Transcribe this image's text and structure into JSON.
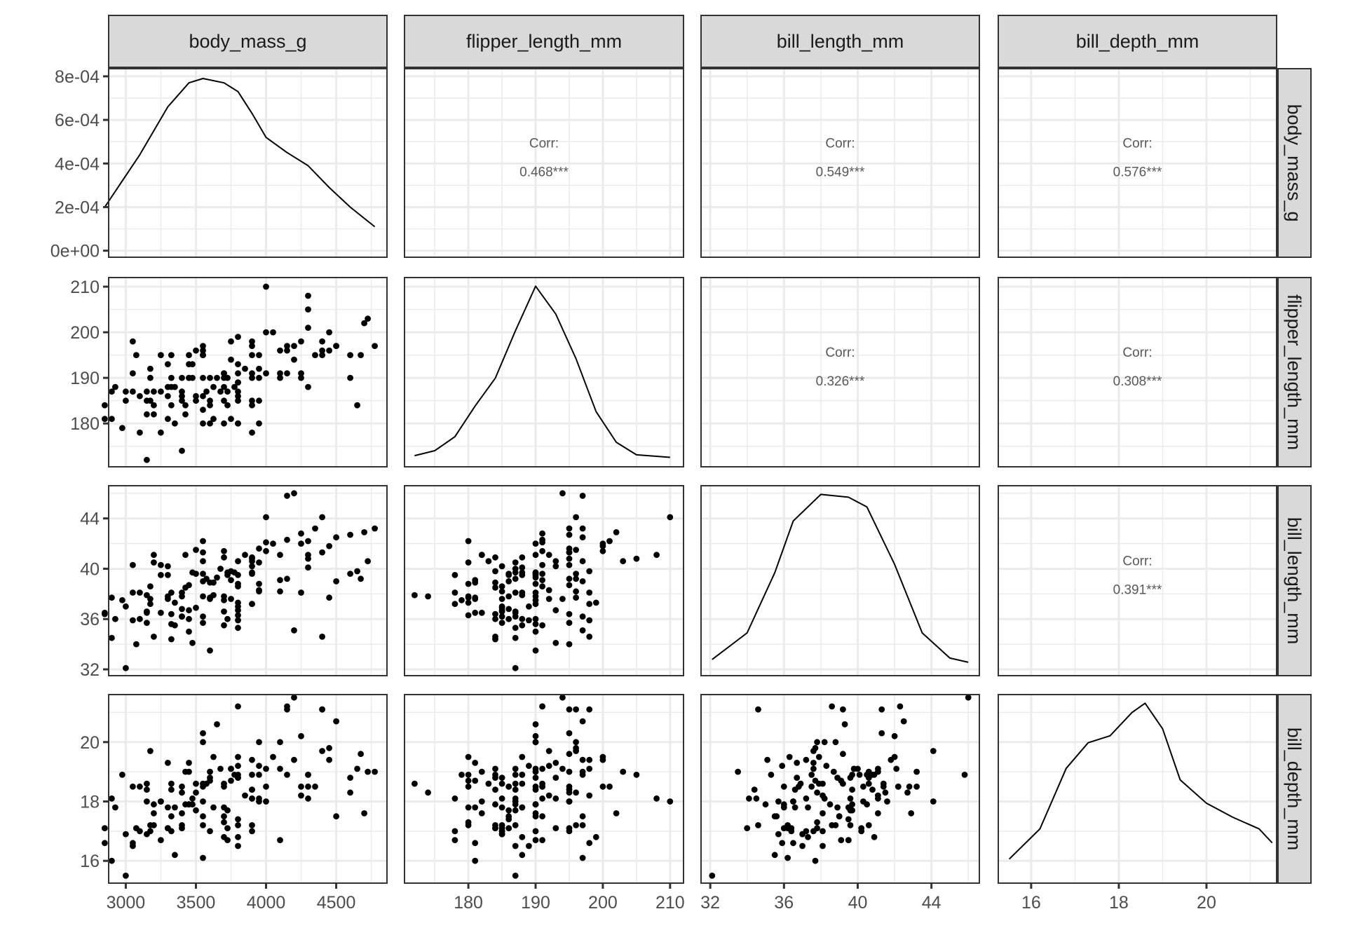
{
  "chart_data": {
    "type": "scatter-matrix",
    "variables": [
      "body_mass_g",
      "flipper_length_mm",
      "bill_length_mm",
      "bill_depth_mm"
    ],
    "ranges": {
      "body_mass_g": [
        2878,
        4862
      ],
      "flipper_length_mm": [
        170.5,
        212
      ],
      "bill_length_mm": [
        31.5,
        46.6
      ],
      "bill_depth_mm": [
        15.25,
        21.6
      ]
    },
    "ticks": {
      "body_mass_g": [
        3000,
        3500,
        4000,
        4500
      ],
      "flipper_length_mm": [
        180,
        190,
        200,
        210
      ],
      "bill_length_mm": [
        32,
        36,
        40,
        44
      ],
      "bill_depth_mm": [
        16,
        18,
        20
      ]
    },
    "density_axis": {
      "range": [
        -3e-05,
        0.000835
      ],
      "ticks": [
        0,
        0.0002,
        0.0004,
        0.0006,
        0.0008
      ],
      "tick_labels": [
        "0e+00",
        "2e-04",
        "4e-04",
        "6e-04",
        "8e-04"
      ]
    },
    "correlations": [
      {
        "row": 0,
        "col": 1,
        "label": "Corr:",
        "value": "0.468***"
      },
      {
        "row": 0,
        "col": 2,
        "label": "Corr:",
        "value": "0.549***"
      },
      {
        "row": 0,
        "col": 3,
        "label": "Corr:",
        "value": "0.576***"
      },
      {
        "row": 1,
        "col": 2,
        "label": "Corr:",
        "value": "0.326***"
      },
      {
        "row": 1,
        "col": 3,
        "label": "Corr:",
        "value": "0.308***"
      },
      {
        "row": 2,
        "col": 3,
        "label": "Corr:",
        "value": "0.391***"
      }
    ],
    "densities": {
      "body_mass_g": [
        [
          2850,
          0.0002
        ],
        [
          3100,
          0.00044
        ],
        [
          3300,
          0.00066
        ],
        [
          3450,
          0.00077
        ],
        [
          3550,
          0.00079
        ],
        [
          3700,
          0.00077
        ],
        [
          3800,
          0.00073
        ],
        [
          3900,
          0.00063
        ],
        [
          4000,
          0.00052
        ],
        [
          4150,
          0.00045
        ],
        [
          4300,
          0.00039
        ],
        [
          4450,
          0.00029
        ],
        [
          4600,
          0.0002
        ],
        [
          4775,
          0.00011
        ]
      ],
      "flipper_length_mm": [
        [
          172,
          0.0012
        ],
        [
          175,
          0.003
        ],
        [
          178,
          0.008
        ],
        [
          181,
          0.019
        ],
        [
          184,
          0.029
        ],
        [
          187,
          0.046
        ],
        [
          190,
          0.062
        ],
        [
          193,
          0.052
        ],
        [
          196,
          0.036
        ],
        [
          199,
          0.017
        ],
        [
          202,
          0.006
        ],
        [
          205,
          0.0015
        ],
        [
          210,
          0.0006
        ]
      ],
      "bill_length_mm": [
        [
          32.1,
          0.006
        ],
        [
          34,
          0.025
        ],
        [
          35.5,
          0.068
        ],
        [
          36.5,
          0.105
        ],
        [
          38,
          0.124
        ],
        [
          39.5,
          0.122
        ],
        [
          40.5,
          0.115
        ],
        [
          42,
          0.074
        ],
        [
          43.5,
          0.025
        ],
        [
          45,
          0.007
        ],
        [
          46,
          0.004
        ]
      ],
      "bill_depth_mm": [
        [
          15.5,
          0.035
        ],
        [
          16.2,
          0.1
        ],
        [
          16.8,
          0.23
        ],
        [
          17.3,
          0.285
        ],
        [
          17.8,
          0.3
        ],
        [
          18.3,
          0.35
        ],
        [
          18.6,
          0.37
        ],
        [
          19.0,
          0.315
        ],
        [
          19.4,
          0.205
        ],
        [
          20.0,
          0.155
        ],
        [
          20.6,
          0.125
        ],
        [
          21.2,
          0.1
        ],
        [
          21.5,
          0.07
        ]
      ]
    },
    "observations": [
      [
        3750,
        181,
        39.1,
        18.7
      ],
      [
        3800,
        186,
        39.5,
        17.4
      ],
      [
        3250,
        195,
        40.3,
        18.0
      ],
      [
        3450,
        193,
        36.7,
        19.3
      ],
      [
        3650,
        190,
        39.3,
        20.6
      ],
      [
        3625,
        181,
        38.9,
        17.8
      ],
      [
        4675,
        195,
        39.2,
        19.6
      ],
      [
        3475,
        193,
        34.1,
        18.1
      ],
      [
        4250,
        190,
        42.0,
        20.2
      ],
      [
        3300,
        186,
        37.8,
        17.1
      ],
      [
        3700,
        180,
        37.8,
        17.3
      ],
      [
        3200,
        182,
        41.1,
        17.6
      ],
      [
        3800,
        191,
        38.6,
        21.2
      ],
      [
        4400,
        198,
        34.6,
        21.1
      ],
      [
        3700,
        185,
        36.6,
        17.8
      ],
      [
        3450,
        195,
        38.7,
        19.0
      ],
      [
        4500,
        197,
        42.5,
        20.7
      ],
      [
        3325,
        184,
        34.4,
        18.4
      ],
      [
        4200,
        194,
        46.0,
        21.5
      ],
      [
        3400,
        174,
        37.8,
        18.3
      ],
      [
        3600,
        180,
        37.7,
        18.7
      ],
      [
        3800,
        189,
        35.9,
        19.2
      ],
      [
        3950,
        185,
        38.2,
        18.1
      ],
      [
        3800,
        180,
        38.8,
        17.2
      ],
      [
        3800,
        187,
        35.3,
        18.9
      ],
      [
        3550,
        183,
        40.6,
        18.6
      ],
      [
        3200,
        187,
        40.5,
        17.9
      ],
      [
        3150,
        172,
        37.9,
        18.6
      ],
      [
        3950,
        180,
        40.5,
        18.9
      ],
      [
        3250,
        178,
        39.5,
        16.7
      ],
      [
        3900,
        178,
        37.2,
        18.1
      ],
      [
        3300,
        188,
        39.5,
        17.8
      ],
      [
        3900,
        184,
        40.9,
        18.9
      ],
      [
        3325,
        195,
        36.4,
        17.0
      ],
      [
        4150,
        196,
        39.2,
        21.1
      ],
      [
        3950,
        190,
        38.8,
        20.0
      ],
      [
        3550,
        180,
        42.2,
        18.5
      ],
      [
        3300,
        181,
        37.6,
        19.3
      ],
      [
        4650,
        184,
        39.8,
        19.1
      ],
      [
        3150,
        182,
        36.5,
        18.0
      ],
      [
        3900,
        195,
        40.8,
        18.4
      ],
      [
        3100,
        186,
        36.0,
        18.5
      ],
      [
        4400,
        196,
        44.1,
        19.7
      ],
      [
        3000,
        185,
        37.0,
        16.9
      ],
      [
        4600,
        190,
        39.6,
        18.8
      ],
      [
        3425,
        182,
        41.1,
        19.0
      ],
      [
        2975,
        179,
        37.5,
        18.9
      ],
      [
        3450,
        190,
        36.0,
        17.9
      ],
      [
        4150,
        191,
        42.3,
        21.2
      ],
      [
        3500,
        186,
        39.6,
        17.7
      ],
      [
        4300,
        188,
        40.1,
        18.9
      ],
      [
        3450,
        190,
        35.0,
        17.9
      ],
      [
        4050,
        200,
        42.0,
        19.5
      ],
      [
        2900,
        187,
        34.5,
        18.1
      ],
      [
        3700,
        191,
        41.4,
        18.6
      ],
      [
        3550,
        186,
        39.0,
        17.5
      ],
      [
        3800,
        193,
        40.6,
        18.8
      ],
      [
        2850,
        181,
        36.5,
        16.6
      ],
      [
        3750,
        194,
        37.6,
        19.1
      ],
      [
        3150,
        185,
        35.7,
        16.9
      ],
      [
        4400,
        195,
        41.3,
        21.1
      ],
      [
        3600,
        185,
        37.6,
        17.0
      ],
      [
        3850,
        192,
        41.1,
        18.2
      ],
      [
        2850,
        184,
        36.4,
        17.1
      ],
      [
        3950,
        195,
        41.6,
        18.0
      ],
      [
        3350,
        188,
        35.5,
        16.2
      ],
      [
        4100,
        190,
        41.1,
        19.1
      ],
      [
        3050,
        198,
        35.9,
        16.6
      ],
      [
        4450,
        200,
        41.8,
        19.4
      ],
      [
        3600,
        190,
        33.5,
        19.0
      ],
      [
        3900,
        190,
        39.7,
        18.4
      ],
      [
        3550,
        196,
        39.6,
        17.2
      ],
      [
        4150,
        197,
        45.8,
        18.9
      ],
      [
        3700,
        191,
        35.5,
        17.5
      ],
      [
        4250,
        191,
        42.8,
        18.5
      ],
      [
        3700,
        188,
        40.9,
        16.8
      ],
      [
        3900,
        198,
        37.2,
        19.4
      ],
      [
        3550,
        197,
        36.2,
        16.1
      ],
      [
        4000,
        191,
        42.1,
        19.1
      ],
      [
        3200,
        184,
        34.6,
        17.2
      ],
      [
        4700,
        202,
        42.9,
        17.6
      ],
      [
        3800,
        185,
        36.7,
        18.8
      ],
      [
        4200,
        197,
        35.1,
        19.4
      ],
      [
        3350,
        180,
        37.3,
        17.8
      ],
      [
        3550,
        195,
        41.3,
        20.3
      ],
      [
        3800,
        180,
        36.3,
        19.5
      ],
      [
        3500,
        185,
        36.9,
        18.6
      ],
      [
        3950,
        192,
        38.3,
        19.2
      ],
      [
        3600,
        184,
        38.9,
        18.8
      ],
      [
        3550,
        195,
        35.7,
        18.0
      ],
      [
        4300,
        208,
        41.1,
        18.1
      ],
      [
        3400,
        185,
        36.2,
        17.1
      ],
      [
        4450,
        196,
        37.7,
        19.8
      ],
      [
        3300,
        193,
        40.2,
        17.1
      ],
      [
        4300,
        201,
        42.2,
        18.5
      ],
      [
        3700,
        190,
        37.5,
        18.5
      ],
      [
        4350,
        195,
        43.2,
        18.5
      ],
      [
        2900,
        181,
        37.7,
        16.0
      ],
      [
        4100,
        191,
        39.1,
        16.7
      ],
      [
        3725,
        187,
        39.7,
        17.7
      ],
      [
        4725,
        203,
        40.6,
        19.0
      ],
      [
        3075,
        195,
        34.0,
        17.1
      ],
      [
        4250,
        198,
        38.1,
        18.2
      ],
      [
        2925,
        188,
        36.0,
        17.8
      ],
      [
        3550,
        190,
        37.8,
        20.0
      ],
      [
        3750,
        198,
        39.8,
        19.1
      ],
      [
        3900,
        197,
        40.6,
        17.2
      ],
      [
        3175,
        190,
        37.2,
        17.0
      ],
      [
        4775,
        197,
        43.2,
        19.0
      ],
      [
        3325,
        190,
        35.6,
        17.5
      ],
      [
        3150,
        187,
        36.6,
        18.4
      ],
      [
        3575,
        187,
        39.2,
        18.6
      ],
      [
        3900,
        185,
        40.2,
        17.0
      ],
      [
        3175,
        185,
        38.6,
        17.2
      ],
      [
        3400,
        187,
        36.2,
        17.2
      ],
      [
        3100,
        178,
        38.1,
        17.0
      ],
      [
        3050,
        187,
        38.1,
        16.5
      ],
      [
        3000,
        187,
        32.1,
        15.5
      ],
      [
        3400,
        190,
        38.1,
        17.6
      ],
      [
        3800,
        199,
        37.3,
        16.8
      ],
      [
        3725,
        184,
        36.0,
        17.1
      ],
      [
        3175,
        192,
        37.6,
        19.7
      ],
      [
        3900,
        191,
        39.6,
        18.1
      ],
      [
        4100,
        196,
        38.2,
        20.0
      ],
      [
        3775,
        188,
        39.7,
        18.9
      ],
      [
        3325,
        188,
        38.1,
        18.6
      ],
      [
        4000,
        210,
        44.1,
        18.0
      ],
      [
        3400,
        186,
        36.8,
        18.5
      ],
      [
        3500,
        196,
        41.5,
        18.3
      ],
      [
        4500,
        197,
        39.0,
        17.5
      ],
      [
        3475,
        190,
        39.7,
        17.9
      ],
      [
        3050,
        191,
        40.3,
        18.5
      ],
      [
        3725,
        190,
        39.5,
        16.7
      ],
      [
        3625,
        188,
        37.9,
        19.5
      ],
      [
        4300,
        205,
        40.8,
        18.9
      ],
      [
        3675,
        187,
        40.0,
        19.1
      ],
      [
        4000,
        200,
        41.4,
        18.5
      ],
      [
        3800,
        189,
        37.0,
        16.5
      ],
      [
        3425,
        184,
        38.5,
        17.9
      ],
      [
        4600,
        195,
        42.7,
        18.3
      ],
      [
        3250,
        187,
        36.5,
        18.0
      ]
    ]
  }
}
